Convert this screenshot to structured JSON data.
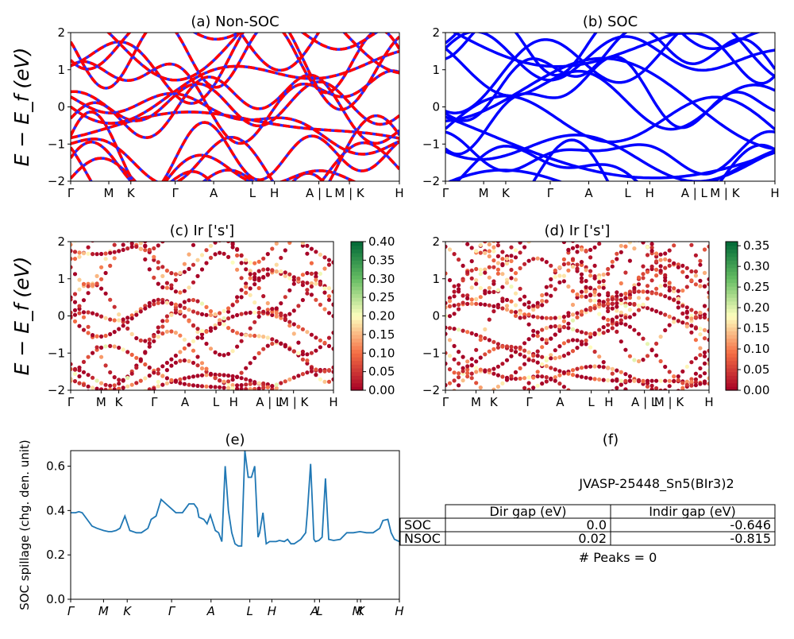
{
  "figure": {
    "e_ylabel": "SOC spillage (chg. den. unit)",
    "panel_f_title": "(f)",
    "material_label": "JVASP-25448_Sn5(BIr3)2",
    "peaks_label": "# Peaks = 0",
    "table": {
      "headers": [
        "Dir gap (eV)",
        "Indir gap (eV)"
      ],
      "rows": [
        {
          "label": "SOC",
          "dir": "0.0",
          "indir": "-0.646"
        },
        {
          "label": "NSOC",
          "dir": "0.02",
          "indir": "-0.815"
        }
      ]
    }
  },
  "colors": {
    "nonsoc": "#ff0000",
    "nonsoc_dash": "#2a2aff",
    "soc": "#0000ff",
    "spillage": "#1f77b4"
  },
  "chart_data": [
    {
      "id": "a",
      "type": "line",
      "title": "(a) Non-SOC",
      "ylabel": "E − E_f (eV)",
      "ylim": [
        -2,
        2
      ],
      "yticks": [
        "2",
        "1",
        "0",
        "−1",
        "−2"
      ],
      "kpath": [
        "Γ",
        "M",
        "K",
        "Γ",
        "A",
        "L",
        "H",
        "A | L",
        "M | K",
        "H"
      ],
      "kpos": [
        0,
        0.116,
        0.183,
        0.318,
        0.435,
        0.553,
        0.62,
        0.755,
        0.848,
        1.0
      ],
      "series_style": "dashed",
      "seed": 11
    },
    {
      "id": "b",
      "type": "line",
      "title": "(b) SOC",
      "ylim": [
        -2,
        2
      ],
      "yticks": [
        "2",
        "1",
        "0",
        "−1",
        "−2"
      ],
      "kpath": [
        "Γ",
        "M",
        "K",
        "Γ",
        "A",
        "L",
        "H",
        "A | L",
        "M | K",
        "H"
      ],
      "kpos": [
        0,
        0.116,
        0.183,
        0.318,
        0.435,
        0.553,
        0.62,
        0.755,
        0.848,
        1.0
      ],
      "series_style": "solid",
      "seed": 23
    },
    {
      "id": "c",
      "type": "scatter",
      "title": "(c)  Ir ['s']",
      "ylabel": "E − E_f (eV)",
      "ylim": [
        -2,
        2
      ],
      "yticks": [
        "2",
        "1",
        "0",
        "−1",
        "−2"
      ],
      "kpath": [
        "Γ",
        "M",
        "K",
        "Γ",
        "A",
        "L",
        "H",
        "A | L",
        "M | K",
        "H"
      ],
      "kpos": [
        0,
        0.116,
        0.183,
        0.318,
        0.435,
        0.553,
        0.62,
        0.755,
        0.848,
        1.0
      ],
      "colorbar_ticks": [
        "0.00",
        "0.05",
        "0.10",
        "0.15",
        "0.20",
        "0.25",
        "0.30",
        "0.35",
        "0.40"
      ],
      "colorbar_range": [
        0,
        0.4
      ],
      "seed": 37
    },
    {
      "id": "d",
      "type": "scatter",
      "title": "(d) Ir ['s']",
      "ylim": [
        -2,
        2
      ],
      "yticks": [
        "2",
        "1",
        "0",
        "−1",
        "−2"
      ],
      "kpath": [
        "Γ",
        "M",
        "K",
        "Γ",
        "A",
        "L",
        "H",
        "A | L",
        "M | K",
        "H"
      ],
      "kpos": [
        0,
        0.116,
        0.183,
        0.318,
        0.435,
        0.553,
        0.62,
        0.755,
        0.848,
        1.0
      ],
      "colorbar_ticks": [
        "0.00",
        "0.05",
        "0.10",
        "0.15",
        "0.20",
        "0.25",
        "0.30",
        "0.35"
      ],
      "colorbar_range": [
        0,
        0.36
      ],
      "seed": 53
    },
    {
      "id": "e",
      "type": "line",
      "title": "(e)",
      "ylabel": "SOC spillage (chg. den. unit)",
      "ylim": [
        0,
        0.67
      ],
      "yticks": [
        "0.6",
        "0.4",
        "0.2",
        "0.0"
      ],
      "ytick_vals": [
        0.6,
        0.4,
        0.2,
        0.0
      ],
      "kpath": [
        "Γ",
        "M",
        "K",
        "Γ",
        "A",
        "L",
        "H",
        "A",
        "L",
        "M",
        "K",
        "H"
      ],
      "kpos": [
        0,
        0.1,
        0.172,
        0.307,
        0.427,
        0.545,
        0.612,
        0.742,
        0.757,
        0.872,
        0.882,
        1.0
      ],
      "x": [
        0,
        0.015,
        0.025,
        0.035,
        0.05,
        0.065,
        0.08,
        0.1,
        0.115,
        0.125,
        0.138,
        0.15,
        0.165,
        0.18,
        0.2,
        0.215,
        0.235,
        0.245,
        0.26,
        0.275,
        0.29,
        0.305,
        0.32,
        0.34,
        0.35,
        0.36,
        0.375,
        0.385,
        0.39,
        0.405,
        0.415,
        0.425,
        0.44,
        0.45,
        0.46,
        0.47,
        0.48,
        0.49,
        0.5,
        0.51,
        0.52,
        0.53,
        0.54,
        0.55,
        0.56,
        0.57,
        0.575,
        0.585,
        0.595,
        0.605,
        0.615,
        0.625,
        0.635,
        0.65,
        0.66,
        0.67,
        0.68,
        0.7,
        0.715,
        0.72,
        0.73,
        0.74,
        0.745,
        0.755,
        0.765,
        0.775,
        0.785,
        0.8,
        0.82,
        0.84,
        0.86,
        0.88,
        0.9,
        0.92,
        0.94,
        0.95,
        0.965,
        0.975,
        0.985,
        1.0
      ],
      "y": [
        0.39,
        0.39,
        0.395,
        0.39,
        0.36,
        0.33,
        0.32,
        0.31,
        0.305,
        0.305,
        0.31,
        0.32,
        0.375,
        0.31,
        0.3,
        0.3,
        0.32,
        0.36,
        0.375,
        0.45,
        0.43,
        0.41,
        0.39,
        0.39,
        0.41,
        0.43,
        0.43,
        0.41,
        0.37,
        0.36,
        0.34,
        0.38,
        0.31,
        0.3,
        0.26,
        0.6,
        0.4,
        0.3,
        0.25,
        0.24,
        0.24,
        0.67,
        0.55,
        0.55,
        0.6,
        0.28,
        0.3,
        0.39,
        0.25,
        0.26,
        0.26,
        0.26,
        0.265,
        0.26,
        0.27,
        0.25,
        0.25,
        0.27,
        0.3,
        0.39,
        0.61,
        0.27,
        0.26,
        0.265,
        0.28,
        0.545,
        0.27,
        0.265,
        0.27,
        0.3,
        0.3,
        0.305,
        0.3,
        0.3,
        0.32,
        0.355,
        0.36,
        0.3,
        0.27,
        0.26
      ]
    }
  ]
}
